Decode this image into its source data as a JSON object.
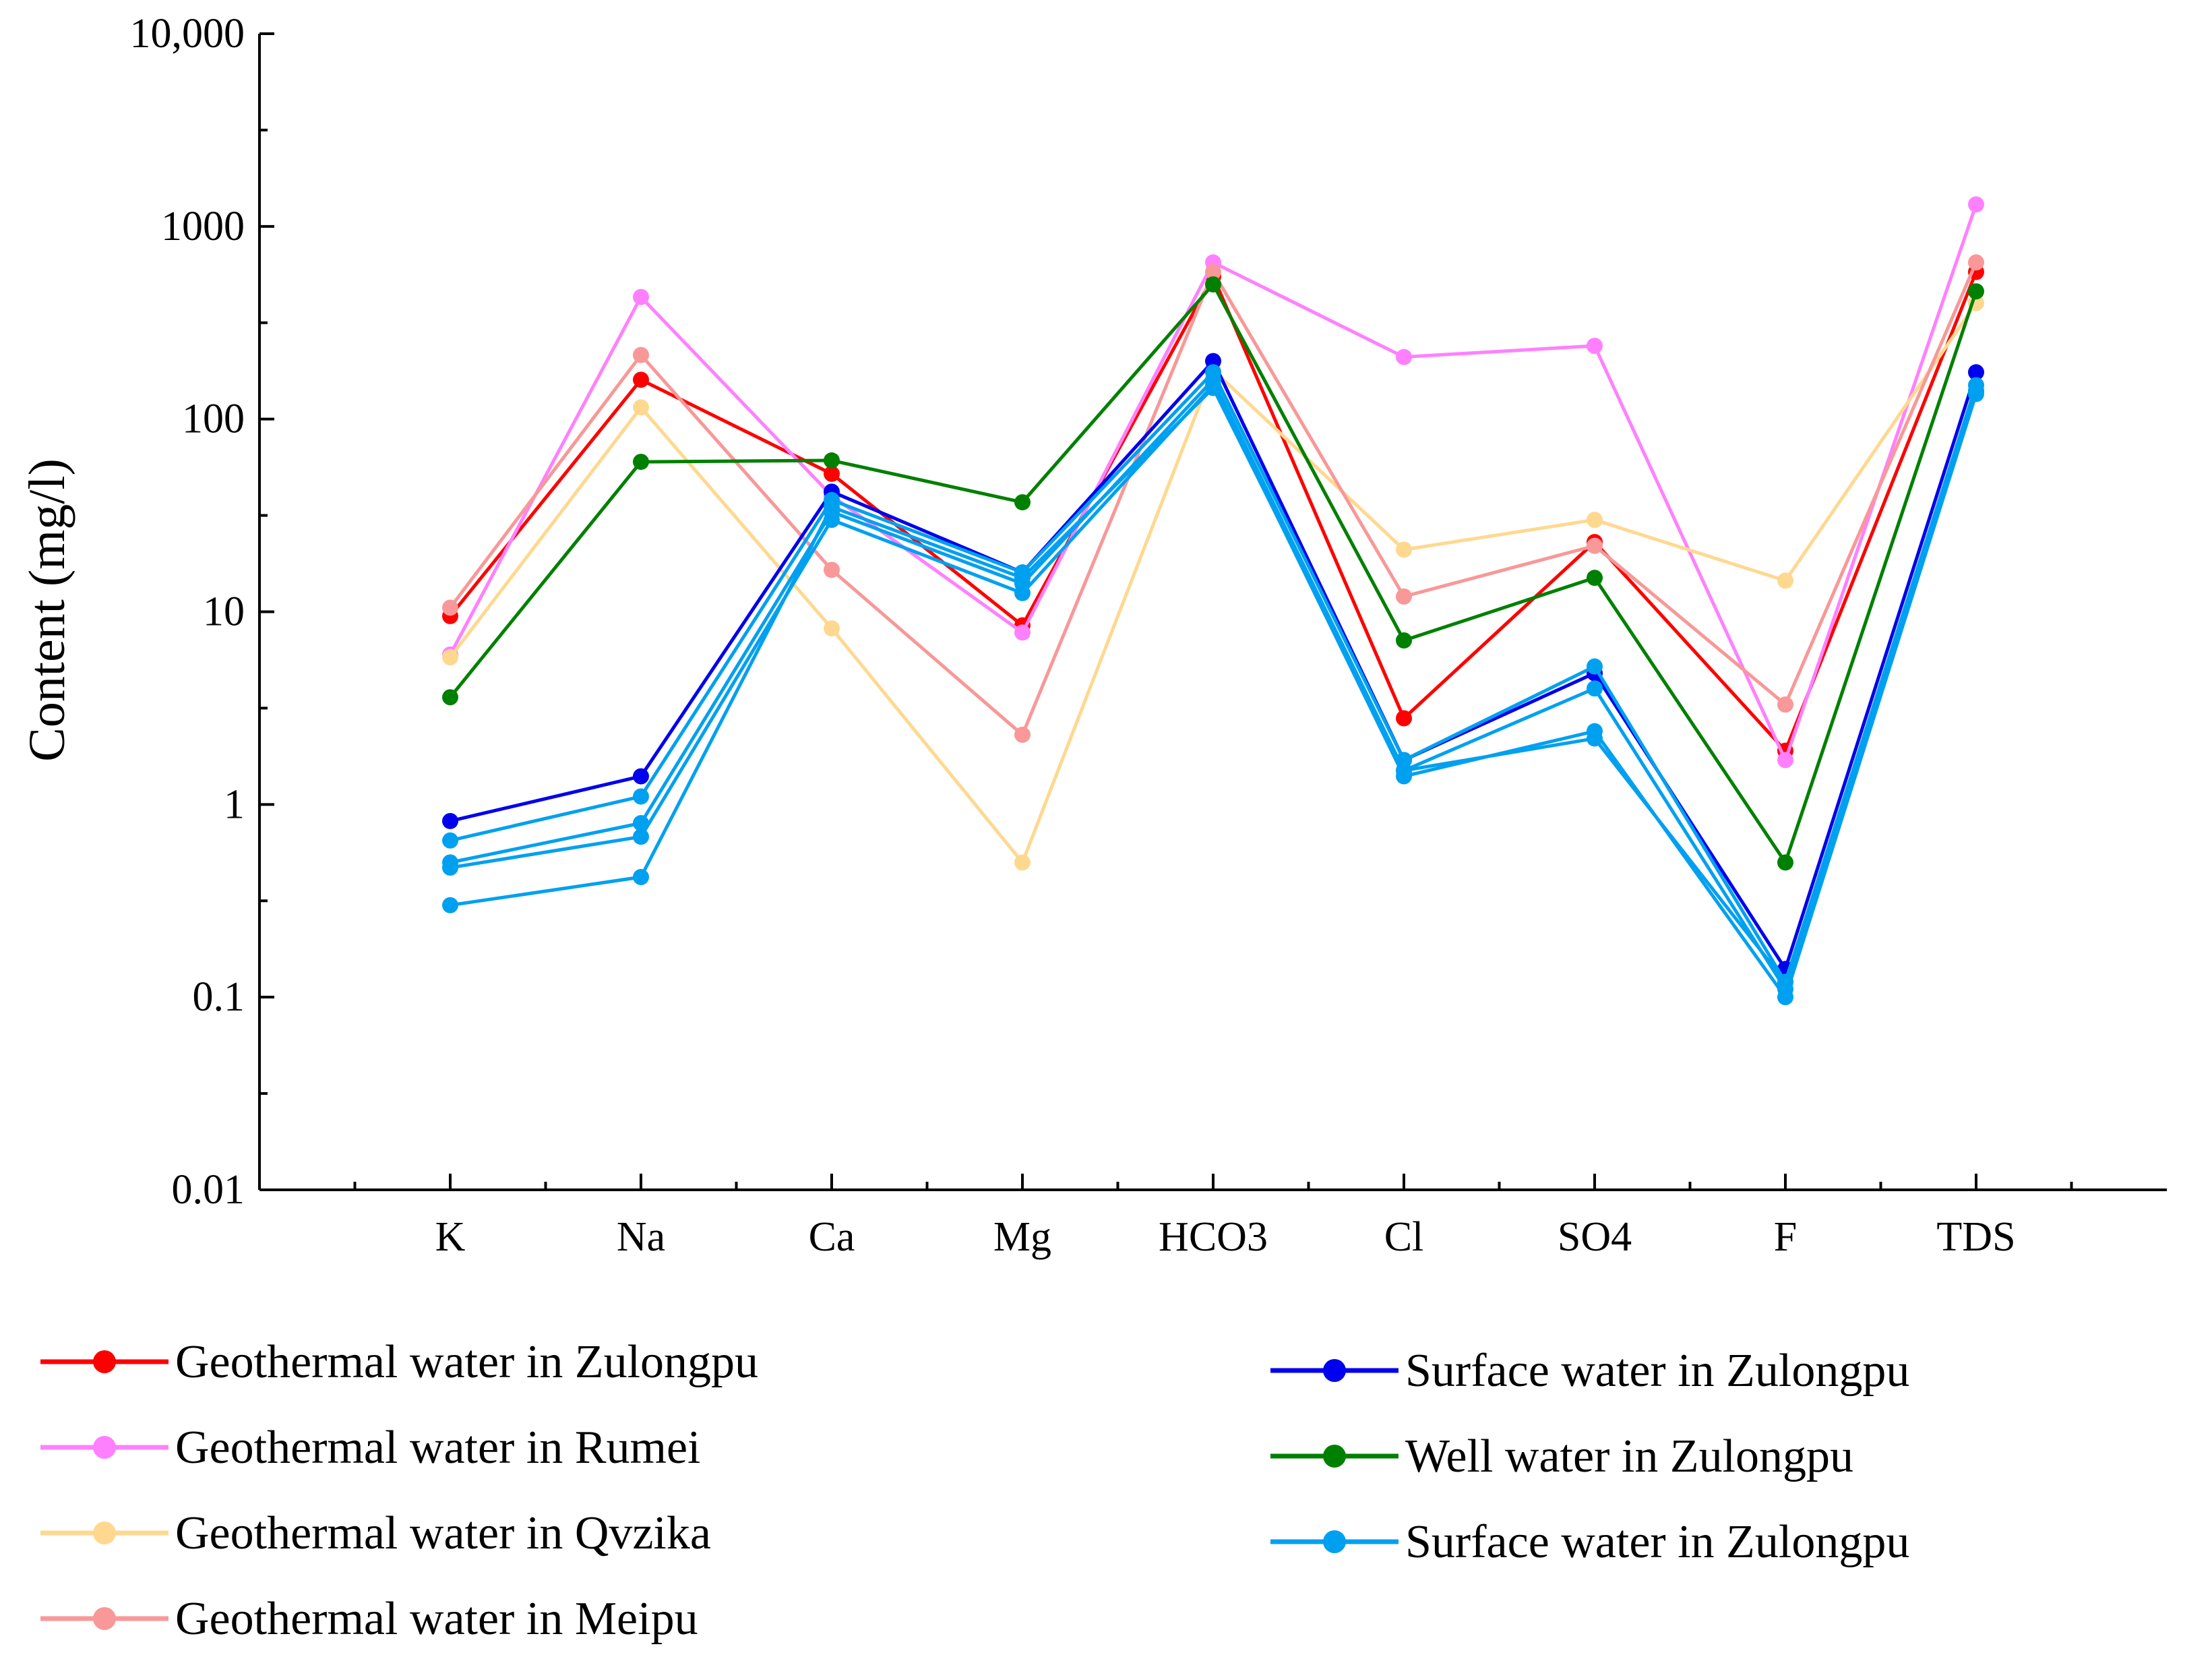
{
  "chart_data": {
    "type": "line",
    "title": "",
    "xlabel": "",
    "ylabel": "Content (mg/l)",
    "y_scale": "log",
    "ylim": [
      0.01,
      10000
    ],
    "y_ticks": [
      {
        "value": 0.01,
        "label": "0.01"
      },
      {
        "value": 0.1,
        "label": "0.1"
      },
      {
        "value": 1,
        "label": "1"
      },
      {
        "value": 10,
        "label": "10"
      },
      {
        "value": 100,
        "label": "100"
      },
      {
        "value": 1000,
        "label": "1000"
      },
      {
        "value": 10000,
        "label": "10,000"
      }
    ],
    "categories": [
      "K",
      "Na",
      "Ca",
      "Mg",
      "HCO3",
      "Cl",
      "SO4",
      "F",
      "TDS"
    ],
    "grid": false,
    "legend_placement": "bottom",
    "series": [
      {
        "name": "Geothermal water in Zulongpu",
        "color": "#ff0000",
        "values": [
          9.5,
          160,
          52,
          8.5,
          550,
          2.8,
          23,
          1.9,
          580
        ]
      },
      {
        "name": "Geothermal water in Rumei",
        "color": "#ff80ff",
        "values": [
          6,
          430,
          40,
          7.8,
          650,
          210,
          240,
          1.7,
          1300
        ]
      },
      {
        "name": "Geothermal water in Qvzika",
        "color": "#ffd890",
        "values": [
          5.8,
          115,
          8.2,
          0.5,
          180,
          21,
          30,
          14.5,
          400
        ]
      },
      {
        "name": "Geothermal water in Meipu",
        "color": "#f89898",
        "values": [
          10.5,
          215,
          16.5,
          2.3,
          580,
          12,
          22,
          3.3,
          650
        ]
      },
      {
        "name": "Surface water in Zulongpu",
        "color": "#0000ee",
        "values": [
          0.82,
          1.4,
          42,
          16,
          200,
          1.7,
          4.8,
          0.14,
          175
        ]
      },
      {
        "name": "Well water in Zulongpu",
        "color": "#008000",
        "values": [
          3.6,
          60,
          61,
          37,
          500,
          7.1,
          15,
          0.5,
          460
        ]
      },
      {
        "name": "Surface water in Zulongpu",
        "color": "#00a0f0",
        "values": [
          0.65,
          1.1,
          38,
          16,
          175,
          1.7,
          5.2,
          0.12,
          150
        ]
      },
      {
        "name": "",
        "color": "#00a0f0",
        "values": [
          0.5,
          0.8,
          33,
          14,
          160,
          1.5,
          4.0,
          0.11,
          140
        ]
      },
      {
        "name": "",
        "color": "#00a0f0",
        "values": [
          0.47,
          0.68,
          30,
          12.5,
          150,
          1.4,
          2.4,
          0.1,
          135
        ]
      },
      {
        "name": "",
        "color": "#00a0f0",
        "values": [
          0.3,
          0.42,
          35,
          15,
          145,
          1.5,
          2.2,
          0.12,
          140
        ]
      }
    ]
  }
}
